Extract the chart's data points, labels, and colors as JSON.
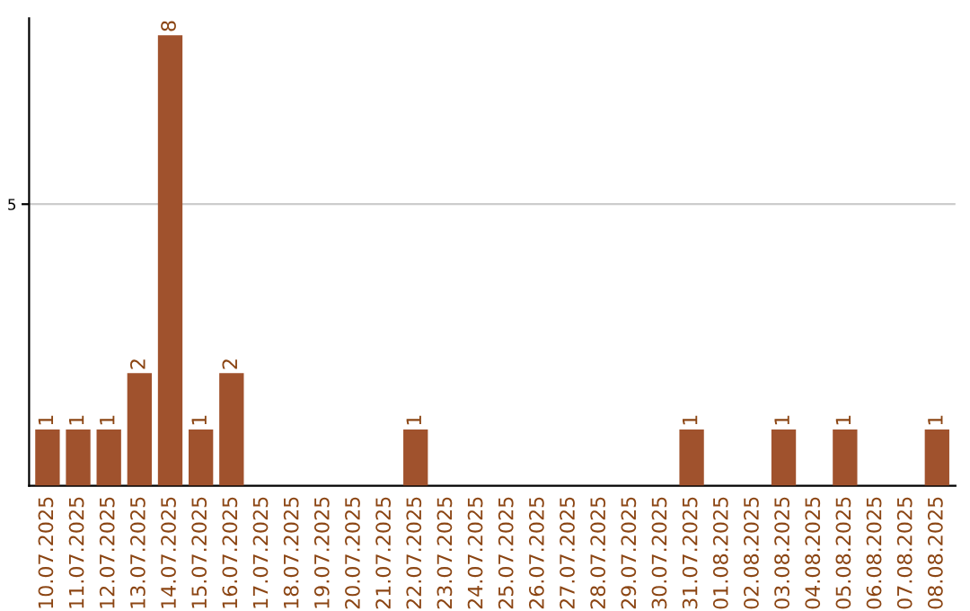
{
  "chart_data": {
    "type": "bar",
    "categories": [
      "10.07.2025",
      "11.07.2025",
      "12.07.2025",
      "13.07.2025",
      "14.07.2025",
      "15.07.2025",
      "16.07.2025",
      "17.07.2025",
      "18.07.2025",
      "19.07.2025",
      "20.07.2025",
      "21.07.2025",
      "22.07.2025",
      "23.07.2025",
      "24.07.2025",
      "25.07.2025",
      "26.07.2025",
      "27.07.2025",
      "28.07.2025",
      "29.07.2025",
      "30.07.2025",
      "31.07.2025",
      "01.08.2025",
      "02.08.2025",
      "03.08.2025",
      "04.08.2025",
      "05.08.2025",
      "06.08.2025",
      "07.08.2025",
      "08.08.2025"
    ],
    "values": [
      1,
      1,
      1,
      2,
      8,
      1,
      2,
      0,
      0,
      0,
      0,
      0,
      1,
      0,
      0,
      0,
      0,
      0,
      0,
      0,
      0,
      1,
      0,
      0,
      1,
      0,
      1,
      0,
      0,
      1
    ],
    "value_labels": [
      "1",
      "1",
      "1",
      "2",
      "8",
      "1",
      "2",
      null,
      null,
      null,
      null,
      null,
      "1",
      null,
      null,
      null,
      null,
      null,
      null,
      null,
      null,
      "1",
      null,
      null,
      "1",
      null,
      "1",
      null,
      null,
      "1"
    ],
    "color": "#a0522d",
    "ylim": [
      0,
      8.3
    ],
    "yticks": [
      5
    ],
    "grid": "y"
  }
}
